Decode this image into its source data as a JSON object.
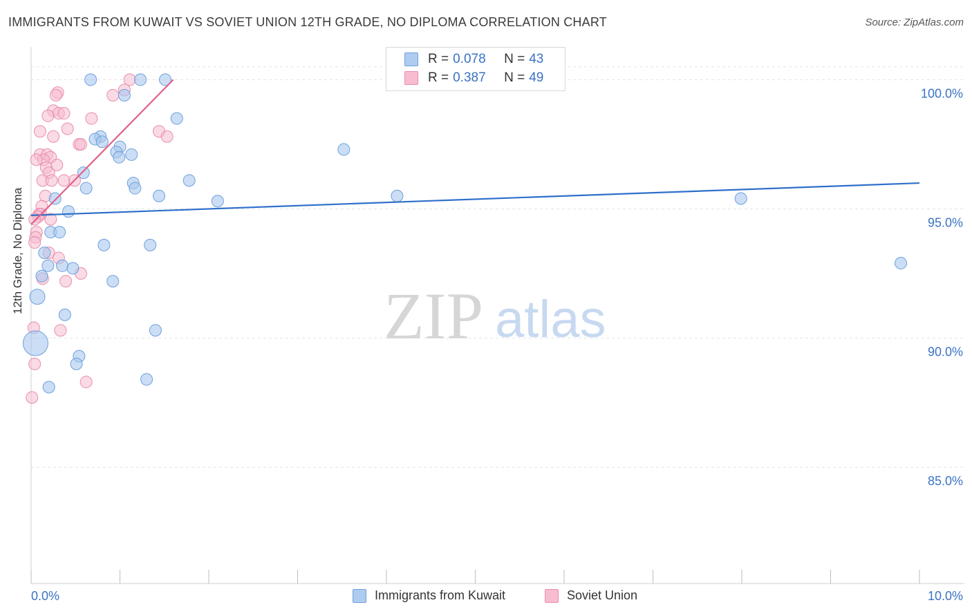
{
  "title": "IMMIGRANTS FROM KUWAIT VS SOVIET UNION 12TH GRADE, NO DIPLOMA CORRELATION CHART",
  "source": "Source: ZipAtlas.com",
  "watermark": {
    "zip": "ZIP",
    "atlas": "atlas"
  },
  "legend": {
    "r_label": "R =",
    "n_label": "N =",
    "rows": [
      {
        "r": "0.078",
        "n": "43",
        "color": "#aecbf0"
      },
      {
        "r": "0.387",
        "n": "49",
        "color": "#f7bcd0"
      }
    ]
  },
  "bottom_legend": [
    {
      "label": "Immigrants from Kuwait",
      "color": "#aecbf0"
    },
    {
      "label": "Soviet Union",
      "color": "#f7bcd0"
    }
  ],
  "colors": {
    "blue_fill": "#a9c8ef",
    "blue_stroke": "#6e9fdc",
    "blue_line": "#2f6fca",
    "pink_fill": "#f6bccf",
    "pink_stroke": "#e88eac",
    "pink_line": "#e0628a",
    "axis_label": "#3a72c4"
  },
  "chart_data": {
    "type": "scatter",
    "title": "IMMIGRANTS FROM KUWAIT VS SOVIET UNION 12TH GRADE, NO DIPLOMA CORRELATION CHART",
    "xlabel": "",
    "ylabel": "12th Grade, No Diploma",
    "xlim": [
      0,
      10
    ],
    "ylim": [
      80.5,
      101
    ],
    "x_tick_labels": [
      "0.0%",
      "10.0%"
    ],
    "y_ticks": [
      85,
      90,
      95,
      100
    ],
    "y_tick_labels": [
      "85.0%",
      "90.0%",
      "95.0%",
      "100.0%"
    ],
    "grid": true,
    "legend_position": "top-center",
    "series": [
      {
        "name": "Immigrants from Kuwait",
        "color": "#a9c8ef",
        "trend": {
          "x": [
            0,
            10
          ],
          "y": [
            94.75,
            96.0
          ]
        },
        "points": [
          [
            0.67,
            100.0
          ],
          [
            1.23,
            100.0
          ],
          [
            1.51,
            100.0
          ],
          [
            1.05,
            99.4
          ],
          [
            1.64,
            98.5
          ],
          [
            0.78,
            97.8
          ],
          [
            0.72,
            97.7
          ],
          [
            0.8,
            97.6
          ],
          [
            1.0,
            97.4
          ],
          [
            0.96,
            97.2
          ],
          [
            0.99,
            97.0
          ],
          [
            1.13,
            97.1
          ],
          [
            3.52,
            97.3
          ],
          [
            0.59,
            96.4
          ],
          [
            1.78,
            96.1
          ],
          [
            1.15,
            96.0
          ],
          [
            1.17,
            95.8
          ],
          [
            0.62,
            95.8
          ],
          [
            1.44,
            95.5
          ],
          [
            4.12,
            95.5
          ],
          [
            0.27,
            95.4
          ],
          [
            2.1,
            95.3
          ],
          [
            7.99,
            95.4
          ],
          [
            0.42,
            94.9
          ],
          [
            0.22,
            94.1
          ],
          [
            0.32,
            94.1
          ],
          [
            0.82,
            93.6
          ],
          [
            1.34,
            93.6
          ],
          [
            0.15,
            93.3
          ],
          [
            0.19,
            92.8
          ],
          [
            0.35,
            92.8
          ],
          [
            0.47,
            92.7
          ],
          [
            9.79,
            92.9
          ],
          [
            0.12,
            92.4
          ],
          [
            0.92,
            92.2
          ],
          [
            0.07,
            91.6
          ],
          [
            0.38,
            90.9
          ],
          [
            1.4,
            90.3
          ],
          [
            0.05,
            89.8
          ],
          [
            0.54,
            89.3
          ],
          [
            0.51,
            89.0
          ],
          [
            1.3,
            88.4
          ],
          [
            0.2,
            88.1
          ]
        ]
      },
      {
        "name": "Soviet Union",
        "color": "#f6bccf",
        "trend": {
          "x": [
            0,
            1.6
          ],
          "y": [
            94.4,
            100.0
          ]
        },
        "points": [
          [
            1.11,
            100.0
          ],
          [
            0.3,
            99.5
          ],
          [
            0.28,
            99.4
          ],
          [
            0.92,
            99.4
          ],
          [
            1.05,
            99.6
          ],
          [
            0.25,
            98.8
          ],
          [
            0.31,
            98.7
          ],
          [
            0.37,
            98.7
          ],
          [
            0.19,
            98.6
          ],
          [
            0.68,
            98.5
          ],
          [
            0.41,
            98.1
          ],
          [
            0.1,
            98.0
          ],
          [
            1.44,
            98.0
          ],
          [
            1.53,
            97.8
          ],
          [
            0.25,
            97.8
          ],
          [
            0.54,
            97.5
          ],
          [
            0.56,
            97.5
          ],
          [
            0.1,
            97.1
          ],
          [
            0.18,
            97.1
          ],
          [
            0.22,
            97.0
          ],
          [
            0.14,
            96.9
          ],
          [
            0.29,
            96.7
          ],
          [
            0.17,
            96.6
          ],
          [
            0.06,
            96.9
          ],
          [
            0.2,
            96.4
          ],
          [
            0.13,
            96.1
          ],
          [
            0.23,
            96.1
          ],
          [
            0.37,
            96.1
          ],
          [
            0.49,
            96.1
          ],
          [
            0.16,
            95.5
          ],
          [
            0.12,
            95.1
          ],
          [
            0.09,
            94.8
          ],
          [
            0.11,
            94.8
          ],
          [
            0.08,
            94.7
          ],
          [
            0.04,
            94.6
          ],
          [
            0.22,
            94.6
          ],
          [
            0.06,
            94.1
          ],
          [
            0.05,
            93.9
          ],
          [
            0.04,
            93.7
          ],
          [
            0.2,
            93.3
          ],
          [
            0.31,
            93.1
          ],
          [
            0.56,
            92.5
          ],
          [
            0.13,
            92.3
          ],
          [
            0.39,
            92.2
          ],
          [
            0.03,
            90.4
          ],
          [
            0.33,
            90.3
          ],
          [
            0.04,
            89.0
          ],
          [
            0.62,
            88.3
          ],
          [
            0.01,
            87.7
          ]
        ]
      }
    ]
  }
}
